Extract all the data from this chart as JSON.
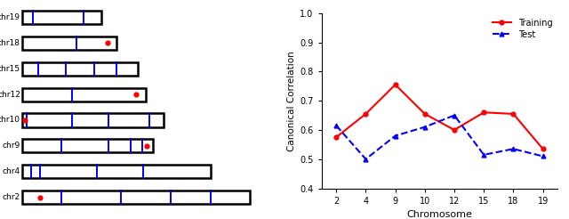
{
  "chromosomes": [
    "chr19",
    "chr18",
    "chr15",
    "chr12",
    "chr10",
    "chr9",
    "chr4",
    "chr2"
  ],
  "chr_lengths_norm": [
    0.3,
    0.36,
    0.44,
    0.47,
    0.54,
    0.5,
    0.72,
    0.87
  ],
  "blue_lines": {
    "chr19": [
      0.04,
      0.235
    ],
    "chr18": [
      0.205
    ],
    "chr15": [
      0.06,
      0.165,
      0.275,
      0.36
    ],
    "chr12": [
      0.19
    ],
    "chr10": [
      0.016,
      0.19,
      0.33,
      0.485
    ],
    "chr9": [
      0.148,
      0.33,
      0.415,
      0.458
    ],
    "chr4": [
      0.033,
      0.068,
      0.285,
      0.46
    ],
    "chr2": [
      0.148,
      0.375,
      0.565,
      0.72
    ]
  },
  "red_dots": {
    "chr18": [
      0.325
    ],
    "chr12": [
      0.435
    ],
    "chr10": [
      0.008
    ],
    "chr9": [
      0.475
    ],
    "chr2": [
      0.068
    ]
  },
  "x_labels": [
    "2",
    "4",
    "9",
    "10",
    "12",
    "15",
    "18",
    "19"
  ],
  "x_positions": [
    0,
    1,
    2,
    3,
    4,
    5,
    6,
    7
  ],
  "training": [
    0.575,
    0.655,
    0.755,
    0.655,
    0.6,
    0.66,
    0.655,
    0.535
  ],
  "test": [
    0.615,
    0.5,
    0.58,
    0.61,
    0.65,
    0.515,
    0.535,
    0.51
  ],
  "ylim": [
    0.4,
    1.0
  ],
  "yticks": [
    0.4,
    0.5,
    0.6,
    0.7,
    0.8,
    0.9,
    1.0
  ],
  "ylabel": "Canonical Correlation",
  "xlabel": "Chromosome",
  "bg_color": "#f5f5f0"
}
